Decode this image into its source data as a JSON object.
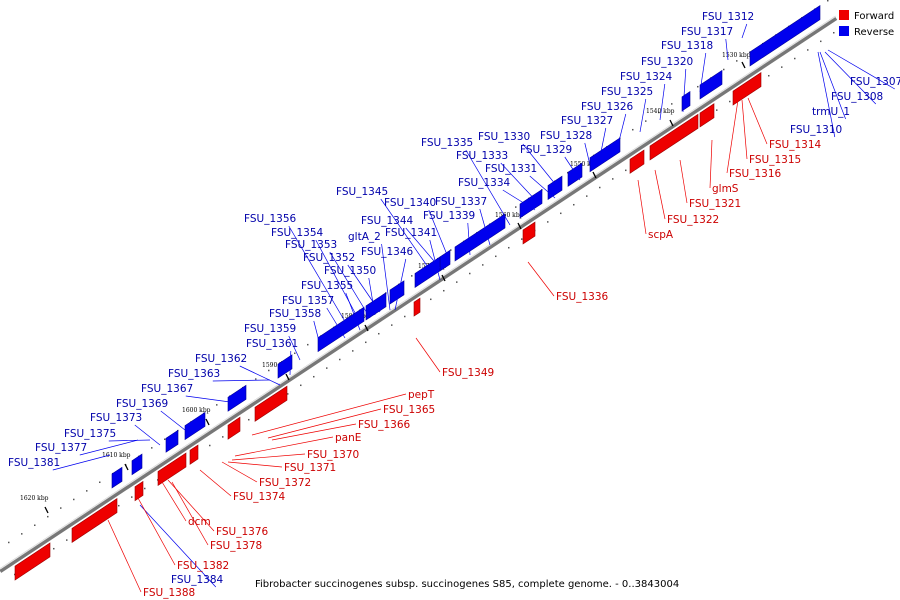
{
  "legend": {
    "items": [
      {
        "label": "Forward",
        "color": "#ee0000"
      },
      {
        "label": "Reverse",
        "color": "#0000ee"
      }
    ]
  },
  "colors": {
    "forward": "#ee0000",
    "reverse": "#0000ee",
    "axis": "#888888"
  },
  "caption": "Fibrobacter succinogenes subsp. succinogenes S85, complete genome. - 0..3843004",
  "ticks": [
    "1530 kbp",
    "1540 kbp",
    "1550 kbp",
    "1560 kbp",
    "1570 kbp",
    "1580 kbp",
    "1590 kbp",
    "1600 kbp",
    "1610 kbp",
    "1620 kbp"
  ],
  "reverse_labels": [
    "FSU_1312",
    "FSU_1317",
    "FSU_1318",
    "FSU_1320",
    "FSU_1324",
    "FSU_1325",
    "FSU_1326",
    "FSU_1327",
    "FSU_1328",
    "FSU_1330",
    "FSU_1329",
    "FSU_1335",
    "FSU_1333",
    "FSU_1331",
    "FSU_1334",
    "FSU_1345",
    "FSU_1340",
    "FSU_1337",
    "FSU_1339",
    "FSU_1356",
    "FSU_1344",
    "FSU_1354",
    "gltA_2",
    "FSU_1341",
    "FSU_1353",
    "FSU_1346",
    "FSU_1352",
    "FSU_1350",
    "FSU_1355",
    "FSU_1357",
    "FSU_1358",
    "FSU_1359",
    "FSU_1361",
    "FSU_1362",
    "FSU_1363",
    "FSU_1367",
    "FSU_1369",
    "FSU_1373",
    "FSU_1375",
    "FSU_1377",
    "FSU_1381",
    "FSU_1384",
    "FSU_1307",
    "FSU_1308",
    "trmU_1",
    "FSU_1310"
  ],
  "forward_labels": [
    "FSU_1314",
    "FSU_1315",
    "FSU_1316",
    "glmS",
    "FSU_1321",
    "FSU_1322",
    "scpA",
    "FSU_1336",
    "FSU_1349",
    "pepT",
    "FSU_1365",
    "FSU_1366",
    "panE",
    "FSU_1370",
    "FSU_1371",
    "FSU_1372",
    "FSU_1374",
    "dcm",
    "FSU_1376",
    "FSU_1378",
    "FSU_1382",
    "FSU_1388"
  ]
}
